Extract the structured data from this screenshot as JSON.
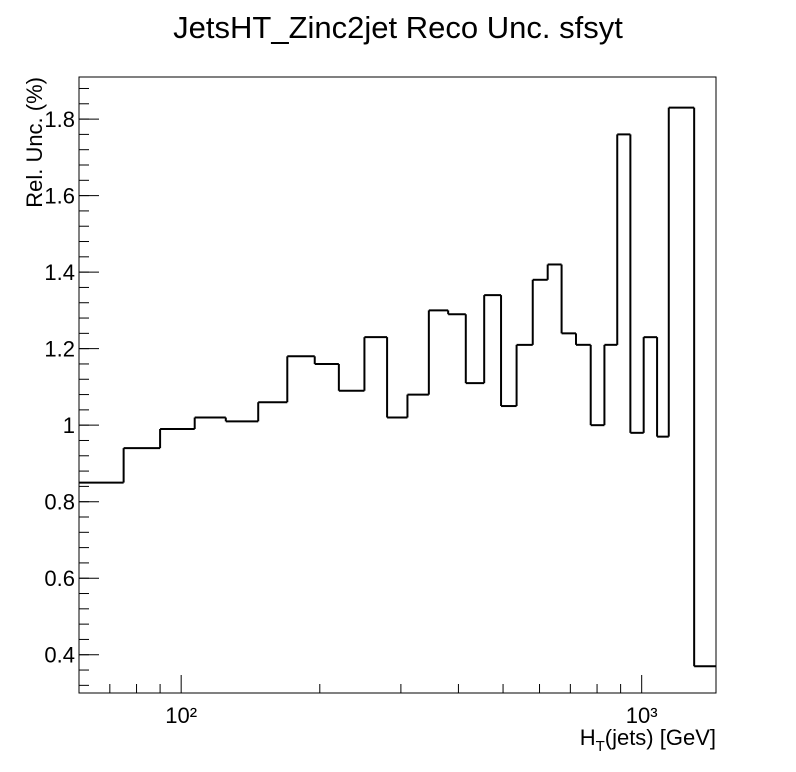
{
  "chart_data": {
    "type": "histogram",
    "title": "JetsHT_Zinc2jet Reco Unc. sfsyt",
    "x_label": [
      "H",
      "T",
      "(jets) [GeV]"
    ],
    "y_label": "Rel. Unc. (%)",
    "bins": [
      60,
      75,
      90,
      107,
      125,
      147,
      170,
      195,
      220,
      250,
      280,
      310,
      345,
      380,
      415,
      455,
      495,
      535,
      580,
      625,
      670,
      720,
      775,
      830,
      885,
      945,
      1010,
      1080,
      1145,
      1300,
      1450
    ],
    "values": [
      0.85,
      0.94,
      0.99,
      1.02,
      1.01,
      1.06,
      1.18,
      1.16,
      1.09,
      1.23,
      1.02,
      1.08,
      1.3,
      1.29,
      1.11,
      1.34,
      1.05,
      1.21,
      1.38,
      1.42,
      1.24,
      1.21,
      1.0,
      1.21,
      1.76,
      0.98,
      1.23,
      0.97,
      1.83,
      0.37
    ],
    "color": "#000000",
    "xscale": "log",
    "xlim": [
      60,
      1450
    ],
    "ylim": [
      0.3,
      1.91
    ],
    "xticks": [
      {
        "value": 100,
        "label": "10²"
      },
      {
        "value": 1000,
        "label": "10³"
      }
    ],
    "yticks": [
      0.4,
      0.6,
      0.8,
      1,
      1.2,
      1.4,
      1.6,
      1.8
    ]
  }
}
